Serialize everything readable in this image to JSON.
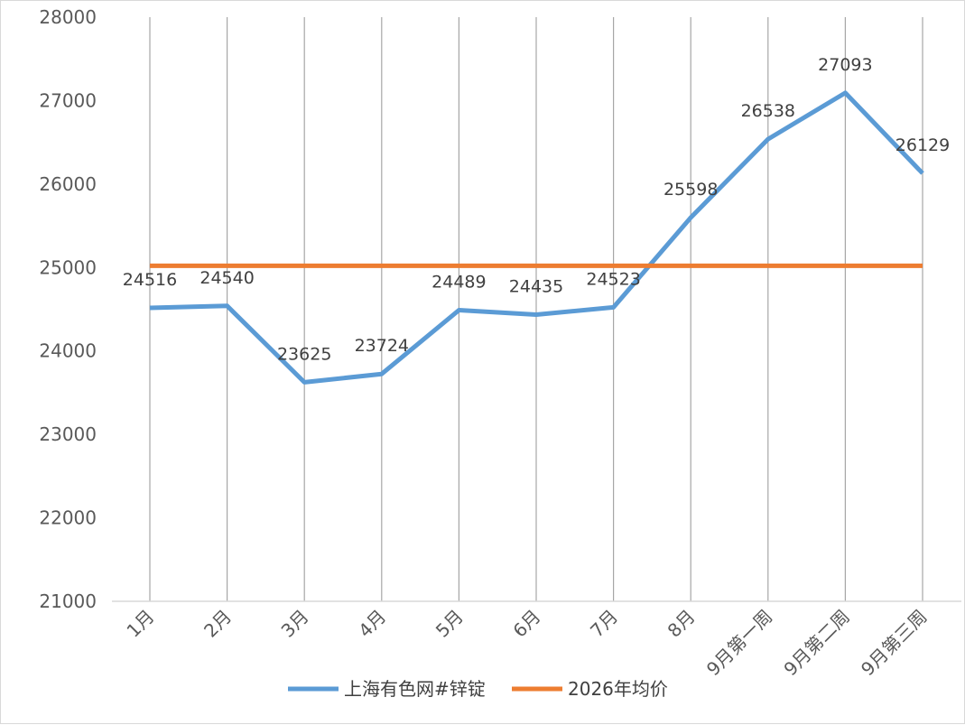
{
  "chart_data": {
    "type": "line",
    "categories": [
      "1月",
      "2月",
      "3月",
      "4月",
      "5月",
      "6月",
      "7月",
      "8月",
      "9月第一周",
      "9月第二周",
      "9月第三周"
    ],
    "series": [
      {
        "name": "上海有色网#锌锭",
        "values": [
          24516,
          24540,
          23625,
          23724,
          24489,
          24435,
          24523,
          25598,
          26538,
          27093,
          26129
        ],
        "color": "#5b9bd5"
      },
      {
        "name": "2026年均价",
        "values": [
          25020,
          25020,
          25020,
          25020,
          25020,
          25020,
          25020,
          25020,
          25020,
          25020,
          25020
        ],
        "color": "#ed7d31"
      }
    ],
    "ylim": [
      21000,
      28000
    ],
    "yticks": [
      21000,
      22000,
      23000,
      24000,
      25000,
      26000,
      27000,
      28000
    ],
    "grid": "vertical lines at each category",
    "legend": "bottom",
    "data_labels_series": 0
  }
}
